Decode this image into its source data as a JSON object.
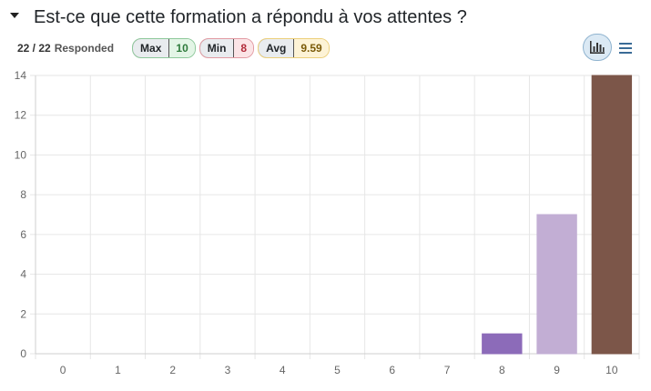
{
  "question": {
    "title": "Est-ce que cette formation a répondu à vos attentes ?"
  },
  "stats": {
    "responded_count": "22 / 22",
    "responded_label": "Responded",
    "max_label": "Max",
    "max_value": "10",
    "min_label": "Min",
    "min_value": "8",
    "avg_label": "Avg",
    "avg_value": "9.59"
  },
  "toolbar": {
    "bar_chart_icon": "bar-chart-icon",
    "list_icon": "list-icon"
  },
  "chart_data": {
    "type": "bar",
    "categories": [
      "0",
      "1",
      "2",
      "3",
      "4",
      "5",
      "6",
      "7",
      "8",
      "9",
      "10"
    ],
    "values": [
      0,
      0,
      0,
      0,
      0,
      0,
      0,
      0,
      1,
      7,
      14
    ],
    "colors": [
      "#cccccc",
      "#cccccc",
      "#cccccc",
      "#cccccc",
      "#cccccc",
      "#cccccc",
      "#cccccc",
      "#cccccc",
      "#8c6bb9",
      "#c2aed4",
      "#7c5649"
    ],
    "ylim": [
      0,
      14
    ],
    "yticks": [
      "0",
      "2",
      "4",
      "6",
      "8",
      "10",
      "12",
      "14"
    ],
    "grid": true,
    "legend": "none",
    "title": "",
    "xlabel": "",
    "ylabel": ""
  }
}
